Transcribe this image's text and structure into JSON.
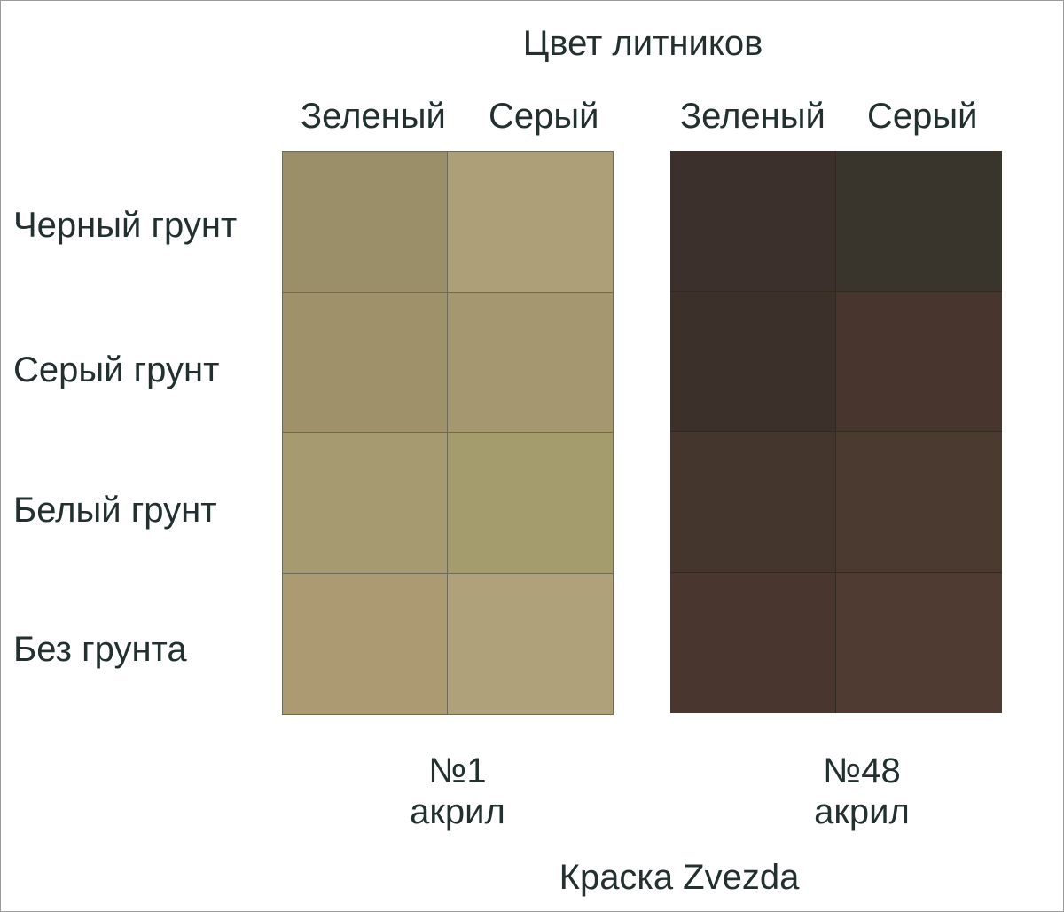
{
  "title": "Цвет литников",
  "columns": [
    "Зеленый",
    "Серый"
  ],
  "rows": [
    "Черный грунт",
    "Серый грунт",
    "Белый грунт",
    "Без грунта"
  ],
  "panels": [
    {
      "number": "№1",
      "type": "акрил",
      "swatches": [
        [
          "#9a8f69",
          "#ad9f77"
        ],
        [
          "#9f926b",
          "#a5976f"
        ],
        [
          "#a69a70",
          "#a59c6d"
        ],
        [
          "#ab9a72",
          "#afa27a"
        ]
      ]
    },
    {
      "number": "№48",
      "type": "акрил",
      "swatches": [
        [
          "#3b302b",
          "#39342c"
        ],
        [
          "#3c302b",
          "#47352e"
        ],
        [
          "#45362d",
          "#4a3a2f"
        ],
        [
          "#48362f",
          "#503b32"
        ]
      ]
    }
  ],
  "brand": "Краска Zvezda"
}
